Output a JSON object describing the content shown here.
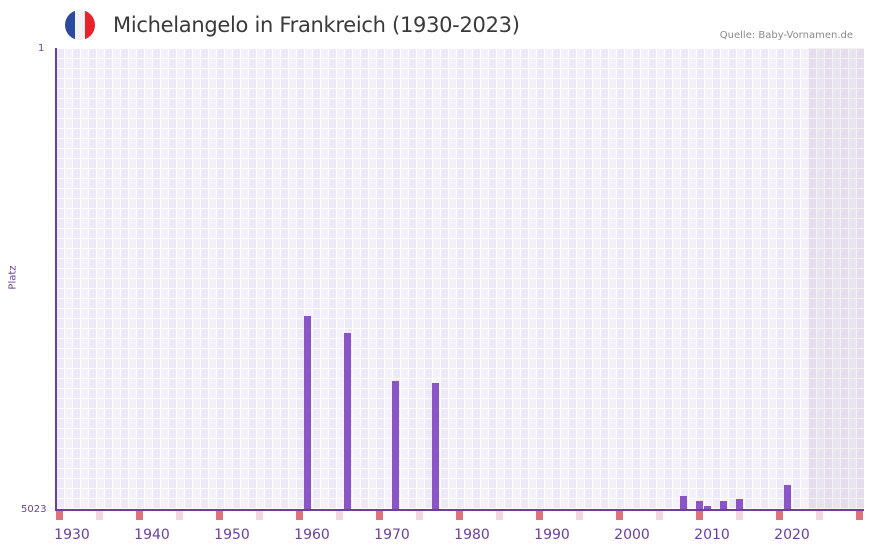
{
  "header": {
    "title": "Michelangelo in Frankreich (1930-2023)",
    "source": "Quelle: Baby-Vornamen.de",
    "flag_icon": "france-flag-icon",
    "flag_colors": [
      "#2b4a9f",
      "#f2f2f2",
      "#e8222a"
    ]
  },
  "colors": {
    "bar": "#8b55c6",
    "axis": "#6b3fa0",
    "decade_marker": "#e0707a",
    "half_decade_marker": "#f4d6de"
  },
  "chart_data": {
    "type": "bar",
    "title": "Michelangelo in Frankreich (1930-2023)",
    "xlabel": "",
    "ylabel": "Platz",
    "y_reversed": true,
    "ylim": [
      1,
      5023
    ],
    "xlim": [
      1930,
      2030
    ],
    "y_tick_labels": [
      "1",
      "5023"
    ],
    "x_tick_labels": [
      "1930",
      "1940",
      "1950",
      "1960",
      "1970",
      "1980",
      "1990",
      "2000",
      "2010",
      "2020"
    ],
    "grid": true,
    "legend": null,
    "shaded_future_from": 2024,
    "categories": [
      "1961",
      "1966",
      "1972",
      "1977",
      "2008",
      "2010",
      "2011",
      "2013",
      "2015",
      "2021"
    ],
    "values": [
      2914,
      3099,
      3621,
      3642,
      4871,
      4924,
      4978,
      4924,
      4902,
      4750
    ],
    "series": [
      {
        "name": "Platz",
        "points": [
          {
            "year": 1961,
            "rank": 2914
          },
          {
            "year": 1966,
            "rank": 3099
          },
          {
            "year": 1972,
            "rank": 3621
          },
          {
            "year": 1977,
            "rank": 3642
          },
          {
            "year": 2008,
            "rank": 4871
          },
          {
            "year": 2010,
            "rank": 4924
          },
          {
            "year": 2011,
            "rank": 4978
          },
          {
            "year": 2013,
            "rank": 4924
          },
          {
            "year": 2015,
            "rank": 4902
          },
          {
            "year": 2021,
            "rank": 4750
          }
        ]
      }
    ]
  }
}
